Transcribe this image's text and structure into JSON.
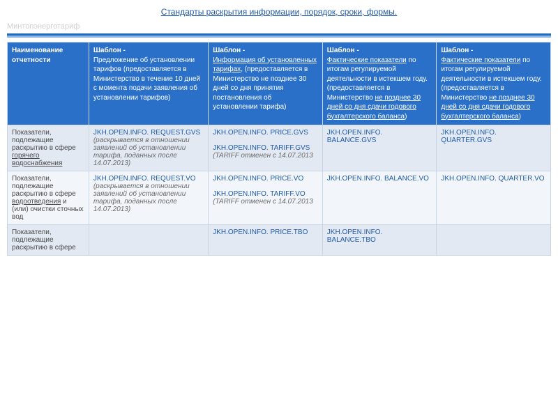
{
  "title": "Стандарты раскрытия информации, порядок, сроки, формы.",
  "watermark": "Минтопэнерготариф",
  "header": {
    "col0": "Наименование отчетности",
    "col1": {
      "lead": "Шаблон -",
      "rest": "Предложение об установлении тарифов (предоставляется в Министерство в течение 10 дней с момента подачи заявления об установлении тарифов)"
    },
    "col2": {
      "lead": "Шаблон -",
      "link": "Информация об установленных тарифах",
      "rest": ", (предоставляется в Министерство не позднее 30 дней со дня принятия постановления об установлении тарифа)"
    },
    "col3": {
      "lead": "Шаблон -",
      "link": "Фактические показатели",
      "mid": " по итогам регулируемой деятельности в истекшем году. (предоставляется в Министерство ",
      "link2": "не позднее 30 дней со дня сдачи годового бухгалтерского баланса",
      "end": ")"
    },
    "col4": {
      "lead": "Шаблон -",
      "link": "Фактические показатели",
      "mid": " по итогам регулируемой деятельности в истекшем году. (предоставляется в Министерство ",
      "link2": "не позднее 30 дней со дня сдачи годового бухгалтерского баланса",
      "end": ")"
    }
  },
  "rows": [
    {
      "cls": "row-a",
      "label_pre": "Показатели, подлежащие раскрытию в сфере ",
      "label_u": "горячего водоснабжения",
      "c1_code": "JKH.OPEN.INFO. REQUEST.GVS",
      "c1_note": " (раскрывается в отношении заявлений об установлении тарифа, поданных после 14.07.2013)",
      "c2_code1": "JKH.OPEN.INFO. PRICE.GVS",
      "c2_code2": "JKH.OPEN.INFO. TARIFF.GVS",
      "c2_note": " (TARIFF отменен с 14.07.2013",
      "c3_code": "JKH.OPEN.INFO. BALANCE.GVS",
      "c4_code": "JKH.OPEN.INFO. QUARTER.GVS"
    },
    {
      "cls": "row-b",
      "label_pre": "Показатели, подлежащие раскрытию в сфере ",
      "label_u": "водоотведения",
      "label_post": " и (или) очистки сточных вод",
      "c1_code": "JKH.OPEN.INFO. REQUEST.VO",
      "c1_note": " (раскрывается в отношении заявлений об установлении тарифа, поданных после 14.07.2013)",
      "c2_code1": "JKH.OPEN.INFO. PRICE.VO",
      "c2_code2": "JKH.OPEN.INFO. TARIFF.VO",
      "c2_note": " (TARIFF отменен с 14.07.2013",
      "c3_code": "JKH.OPEN.INFO. BALANCE.VO",
      "c4_code": "JKH.OPEN.INFO. QUARTER.VO"
    },
    {
      "cls": "row-a",
      "label_pre": "Показатели, подлежащие раскрытию в сфере",
      "c1_code": "",
      "c2_code1": "JKH.OPEN.INFO. PRICE.TBO",
      "c3_code": "JKH.OPEN.INFO. BALANCE.TBO",
      "c4_code": ""
    }
  ]
}
